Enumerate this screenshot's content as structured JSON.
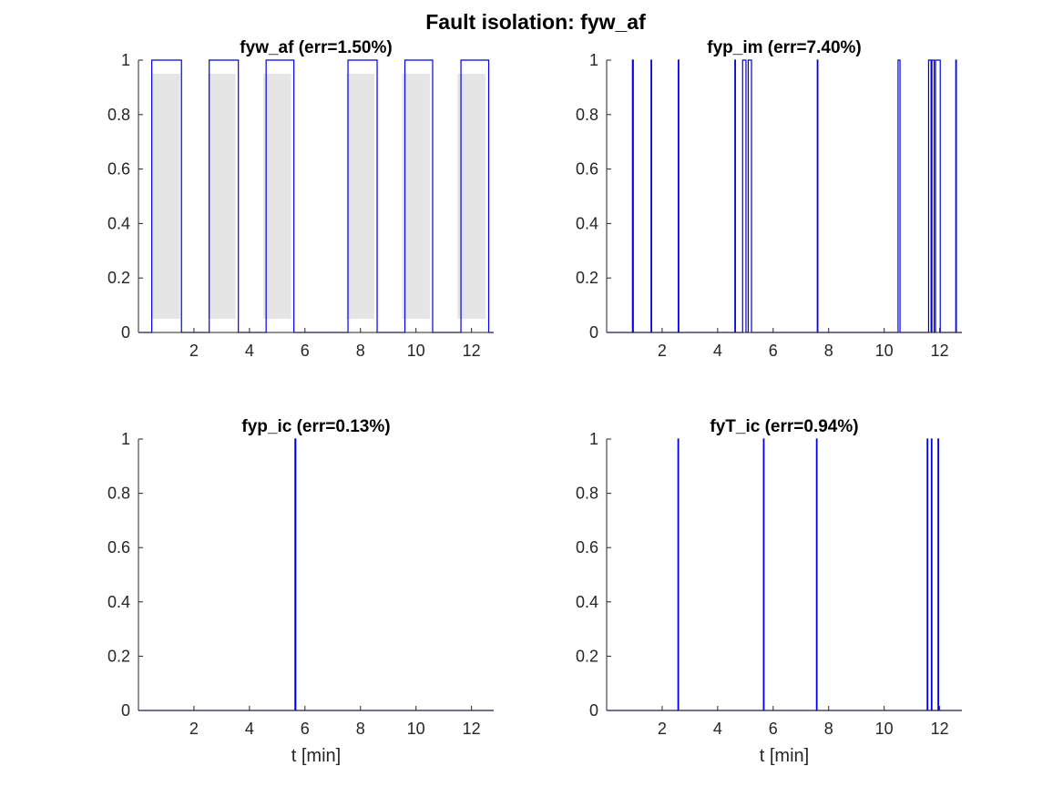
{
  "chart_data": {
    "title": "Fault isolation: fyw_af",
    "x_ticks": [
      2,
      4,
      6,
      8,
      10,
      12
    ],
    "y_ticks": [
      "0",
      "0.2",
      "0.4",
      "0.6",
      "0.8",
      "1"
    ],
    "xlim": [
      0,
      12.8
    ],
    "ylim": [
      0,
      1
    ],
    "colors": {
      "signal": "#0000e6",
      "band": "#e5e5e5",
      "axis": "#262626"
    },
    "panels": [
      {
        "type": "line",
        "title": "fyw_af (err=1.50%)",
        "xlabel": "",
        "bands": [
          [
            0.5,
            1.5
          ],
          [
            2.5,
            3.5
          ],
          [
            4.5,
            5.5
          ],
          [
            7.5,
            8.5
          ],
          [
            9.5,
            10.5
          ],
          [
            11.5,
            12.5
          ]
        ],
        "band_y": [
          0.05,
          0.95
        ],
        "pulses": [
          [
            0.48,
            1.55
          ],
          [
            2.55,
            3.6
          ],
          [
            4.6,
            5.6
          ],
          [
            7.55,
            8.6
          ],
          [
            9.6,
            10.6
          ],
          [
            11.62,
            12.62
          ]
        ]
      },
      {
        "type": "line",
        "title": "fyp_im (err=7.40%)",
        "xlabel": "",
        "bands": [],
        "pulses": [
          [
            0.93,
            0.96
          ],
          [
            1.6,
            1.62
          ],
          [
            2.58,
            2.6
          ],
          [
            4.62,
            4.64
          ],
          [
            4.9,
            5.02
          ],
          [
            5.1,
            5.22
          ],
          [
            7.59,
            7.61
          ],
          [
            10.5,
            10.57
          ],
          [
            11.6,
            11.69
          ],
          [
            11.72,
            11.8
          ],
          [
            11.85,
            12.02
          ],
          [
            12.58,
            12.6
          ]
        ]
      },
      {
        "type": "line",
        "title": "fyp_ic (err=0.13%)",
        "xlabel": "t [min]",
        "bands": [],
        "pulses": [
          [
            5.64,
            5.67
          ]
        ]
      },
      {
        "type": "line",
        "title": "fyT_ic (err=0.94%)",
        "xlabel": "t [min]",
        "bands": [],
        "pulses": [
          [
            2.57,
            2.59
          ],
          [
            5.65,
            5.67
          ],
          [
            7.56,
            7.58
          ],
          [
            11.55,
            11.57
          ],
          [
            11.7,
            11.72
          ],
          [
            11.94,
            11.96
          ]
        ]
      }
    ]
  }
}
